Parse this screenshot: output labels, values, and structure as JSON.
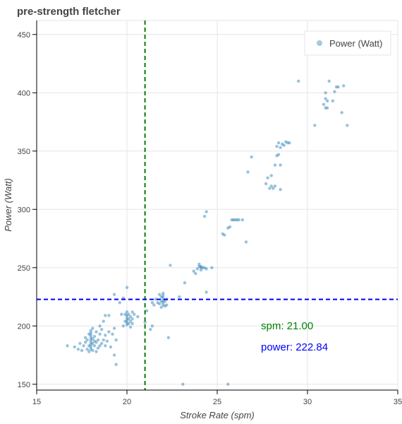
{
  "chart_data": {
    "type": "scatter",
    "title": "pre-strength fletcher",
    "xlabel": "Stroke Rate (spm)",
    "ylabel": "Power (Watt)",
    "xlim": [
      15,
      35
    ],
    "ylim": [
      145,
      462
    ],
    "x_ticks": [
      15,
      20,
      25,
      30,
      35
    ],
    "y_ticks": [
      150,
      200,
      250,
      300,
      350,
      400,
      450
    ],
    "grid": true,
    "legend": {
      "position": "top-right",
      "entries": [
        "Power (Watt)"
      ]
    },
    "colors": {
      "points": "#1f77b4",
      "spm_line": "#008000",
      "power_line": "#0000ff"
    },
    "reference_lines": [
      {
        "orientation": "vertical",
        "value": 21.0,
        "color": "#008000",
        "style": "dashed"
      },
      {
        "orientation": "horizontal",
        "value": 222.84,
        "color": "#0000ff",
        "style": "dashed"
      }
    ],
    "annotations": [
      {
        "text": "spm:  21.00",
        "color": "#008000"
      },
      {
        "text": "power: 222.84",
        "color": "#0000ff"
      }
    ],
    "series": [
      {
        "name": "Power (Watt)",
        "points": [
          [
            16.7,
            183
          ],
          [
            17.1,
            182
          ],
          [
            17.3,
            180
          ],
          [
            17.4,
            185
          ],
          [
            17.5,
            179
          ],
          [
            17.6,
            183
          ],
          [
            17.7,
            186
          ],
          [
            17.7,
            190
          ],
          [
            17.8,
            180
          ],
          [
            17.8,
            188
          ],
          [
            17.9,
            178
          ],
          [
            17.9,
            183
          ],
          [
            17.9,
            193
          ],
          [
            18.0,
            180
          ],
          [
            18.0,
            182
          ],
          [
            18.0,
            184
          ],
          [
            18.0,
            186
          ],
          [
            18.0,
            188
          ],
          [
            18.0,
            190
          ],
          [
            18.0,
            192
          ],
          [
            18.0,
            194
          ],
          [
            18.0,
            196
          ],
          [
            18.1,
            179
          ],
          [
            18.1,
            185
          ],
          [
            18.1,
            189
          ],
          [
            18.1,
            198
          ],
          [
            18.2,
            183
          ],
          [
            18.2,
            187
          ],
          [
            18.2,
            191
          ],
          [
            18.3,
            178
          ],
          [
            18.3,
            186
          ],
          [
            18.3,
            195
          ],
          [
            18.4,
            181
          ],
          [
            18.4,
            188
          ],
          [
            18.5,
            183
          ],
          [
            18.5,
            193
          ],
          [
            18.5,
            200
          ],
          [
            18.6,
            185
          ],
          [
            18.6,
            197
          ],
          [
            18.7,
            188
          ],
          [
            18.7,
            204
          ],
          [
            18.8,
            183
          ],
          [
            18.8,
            192
          ],
          [
            18.8,
            209
          ],
          [
            18.9,
            187
          ],
          [
            19.0,
            195
          ],
          [
            19.0,
            209
          ],
          [
            19.1,
            182
          ],
          [
            19.2,
            193
          ],
          [
            19.3,
            175
          ],
          [
            19.3,
            198
          ],
          [
            19.3,
            227
          ],
          [
            19.4,
            188
          ],
          [
            19.4,
            167
          ],
          [
            19.6,
            220
          ],
          [
            19.7,
            210
          ],
          [
            19.8,
            200
          ],
          [
            19.8,
            224
          ],
          [
            19.9,
            204
          ],
          [
            19.9,
            210
          ],
          [
            20.0,
            201
          ],
          [
            20.0,
            203
          ],
          [
            20.0,
            205
          ],
          [
            20.0,
            207
          ],
          [
            20.0,
            209
          ],
          [
            20.0,
            212
          ],
          [
            20.0,
            233
          ],
          [
            20.1,
            202
          ],
          [
            20.1,
            206
          ],
          [
            20.1,
            210
          ],
          [
            20.2,
            199
          ],
          [
            20.2,
            204
          ],
          [
            20.2,
            208
          ],
          [
            20.3,
            202
          ],
          [
            20.3,
            206
          ],
          [
            20.3,
            212
          ],
          [
            20.4,
            210
          ],
          [
            20.6,
            208
          ],
          [
            21.0,
            203
          ],
          [
            21.1,
            213
          ],
          [
            21.3,
            197
          ],
          [
            21.4,
            200
          ],
          [
            21.4,
            220
          ],
          [
            21.5,
            218
          ],
          [
            21.6,
            223
          ],
          [
            21.7,
            220
          ],
          [
            21.8,
            219
          ],
          [
            21.8,
            227
          ],
          [
            21.9,
            216
          ],
          [
            21.9,
            221
          ],
          [
            21.9,
            225
          ],
          [
            22.0,
            218
          ],
          [
            22.0,
            220
          ],
          [
            22.0,
            222
          ],
          [
            22.0,
            224
          ],
          [
            22.0,
            226
          ],
          [
            22.0,
            228
          ],
          [
            22.1,
            221
          ],
          [
            22.1,
            217
          ],
          [
            22.2,
            223
          ],
          [
            22.2,
            218
          ],
          [
            22.3,
            190
          ],
          [
            22.4,
            252
          ],
          [
            22.9,
            225
          ],
          [
            23.2,
            237
          ],
          [
            23.7,
            247
          ],
          [
            23.8,
            245
          ],
          [
            23.9,
            249
          ],
          [
            24.0,
            251
          ],
          [
            24.0,
            253
          ],
          [
            24.1,
            248
          ],
          [
            24.1,
            251
          ],
          [
            24.2,
            250
          ],
          [
            24.3,
            250
          ],
          [
            24.4,
            229
          ],
          [
            24.4,
            249
          ],
          [
            24.3,
            294
          ],
          [
            24.4,
            298
          ],
          [
            24.7,
            250
          ],
          [
            24.1,
            250
          ],
          [
            25.3,
            279
          ],
          [
            25.4,
            278
          ],
          [
            25.6,
            284
          ],
          [
            25.7,
            285
          ],
          [
            25.8,
            291
          ],
          [
            25.9,
            291
          ],
          [
            26.0,
            291
          ],
          [
            26.1,
            291
          ],
          [
            26.2,
            291
          ],
          [
            26.4,
            291
          ],
          [
            26.6,
            272
          ],
          [
            26.7,
            332
          ],
          [
            26.9,
            345
          ],
          [
            27.7,
            322
          ],
          [
            27.8,
            327
          ],
          [
            27.9,
            318
          ],
          [
            28.0,
            320
          ],
          [
            28.0,
            329
          ],
          [
            28.1,
            318
          ],
          [
            28.2,
            320
          ],
          [
            28.2,
            338
          ],
          [
            28.3,
            346
          ],
          [
            28.3,
            354
          ],
          [
            28.4,
            347
          ],
          [
            28.4,
            357
          ],
          [
            28.5,
            317
          ],
          [
            28.5,
            338
          ],
          [
            28.5,
            353
          ],
          [
            28.6,
            356
          ],
          [
            28.7,
            355
          ],
          [
            28.8,
            358
          ],
          [
            28.9,
            357
          ],
          [
            29.0,
            357
          ],
          [
            29.5,
            410
          ],
          [
            30.4,
            372
          ],
          [
            30.9,
            390
          ],
          [
            31.0,
            387
          ],
          [
            31.0,
            395
          ],
          [
            31.0,
            400
          ],
          [
            31.1,
            387
          ],
          [
            31.1,
            393
          ],
          [
            31.2,
            410
          ],
          [
            31.4,
            393
          ],
          [
            31.5,
            401
          ],
          [
            31.6,
            405
          ],
          [
            31.7,
            405
          ],
          [
            31.9,
            383
          ],
          [
            32.0,
            406
          ],
          [
            32.2,
            372
          ],
          [
            23.1,
            150
          ],
          [
            25.6,
            150
          ]
        ]
      }
    ]
  }
}
